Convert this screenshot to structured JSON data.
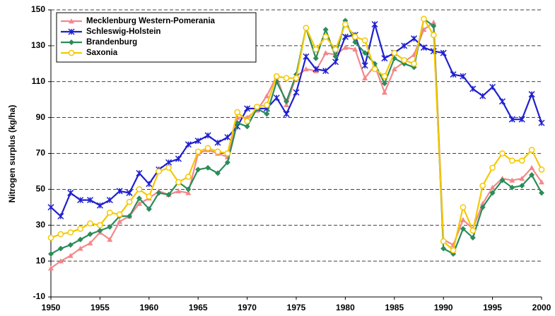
{
  "chart_data": {
    "type": "line",
    "y_label": "Nitrogen surplus (kg/ha)",
    "x": [
      1950,
      1951,
      1952,
      1953,
      1954,
      1955,
      1956,
      1957,
      1958,
      1959,
      1960,
      1961,
      1962,
      1963,
      1964,
      1965,
      1966,
      1967,
      1968,
      1969,
      1970,
      1971,
      1972,
      1973,
      1974,
      1975,
      1976,
      1977,
      1978,
      1979,
      1980,
      1981,
      1982,
      1983,
      1984,
      1985,
      1986,
      1987,
      1988,
      1989,
      1990,
      1991,
      1992,
      1993,
      1994,
      1995,
      1996,
      1997,
      1998,
      1999,
      2000
    ],
    "xlim": [
      1950,
      2000
    ],
    "xticks": [
      1950,
      1955,
      1960,
      1965,
      1970,
      1975,
      1980,
      1985,
      1990,
      1995,
      2000
    ],
    "ylim": [
      -10,
      150
    ],
    "yticks": [
      -10,
      10,
      30,
      50,
      70,
      90,
      110,
      130,
      150
    ],
    "grid": true,
    "legend": "upper left",
    "series": [
      {
        "name": "Mecklenburg Western-Pomerania",
        "color": "#f4888a",
        "marker": "triangle",
        "values": [
          6,
          10,
          13,
          17,
          20,
          26,
          22,
          32,
          35,
          42,
          45,
          49,
          47,
          49,
          48,
          70,
          72,
          70,
          68,
          90,
          90,
          94,
          102,
          113,
          97,
          113,
          117,
          116,
          126,
          125,
          129,
          128,
          112,
          119,
          104,
          117,
          121,
          125,
          139,
          143,
          22,
          19,
          33,
          28,
          42,
          51,
          56,
          55,
          56,
          62,
          54
        ]
      },
      {
        "name": "Schleswig-Holstein",
        "color": "#1f1fd0",
        "marker": "star",
        "values": [
          40,
          35,
          48,
          44,
          44,
          41,
          44,
          49,
          48,
          59,
          53,
          61,
          65,
          67,
          75,
          77,
          80,
          76,
          79,
          85,
          95,
          95,
          95,
          101,
          92,
          104,
          124,
          117,
          116,
          121,
          135,
          136,
          119,
          142,
          123,
          126,
          130,
          134,
          129,
          127,
          126,
          114,
          113,
          106,
          102,
          107,
          99,
          89,
          89,
          103,
          87
        ]
      },
      {
        "name": "Brandenburg",
        "color": "#2a8c5a",
        "marker": "diamond",
        "values": [
          14,
          17,
          19,
          22,
          25,
          27,
          29,
          35,
          35,
          45,
          39,
          48,
          47,
          54,
          50,
          61,
          62,
          59,
          65,
          87,
          85,
          95,
          92,
          110,
          99,
          114,
          140,
          123,
          139,
          124,
          144,
          132,
          126,
          120,
          109,
          123,
          120,
          118,
          145,
          141,
          17,
          14,
          28,
          23,
          40,
          48,
          55,
          51,
          52,
          58,
          48
        ]
      },
      {
        "name": "Saxonia",
        "color": "#f5c800",
        "marker": "circle",
        "values": [
          23,
          25,
          26,
          28,
          31,
          30,
          37,
          36,
          43,
          50,
          46,
          60,
          62,
          54,
          57,
          71,
          73,
          71,
          70,
          93,
          88,
          96,
          97,
          113,
          112,
          112,
          140,
          128,
          135,
          128,
          142,
          135,
          133,
          117,
          113,
          126,
          122,
          120,
          145,
          136,
          21,
          16,
          40,
          27,
          52,
          62,
          70,
          66,
          66,
          72,
          61
        ]
      }
    ]
  }
}
